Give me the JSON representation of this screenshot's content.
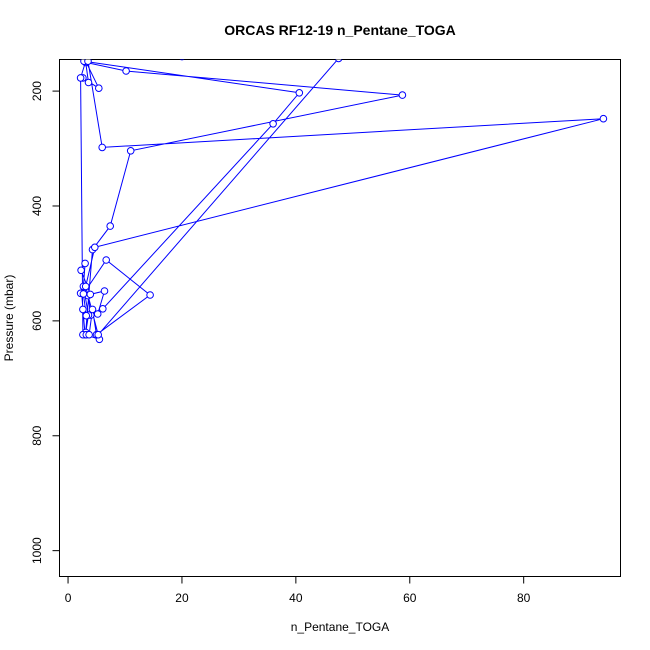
{
  "colors": {
    "series": "#0000ff",
    "axis": "#000000",
    "background": "#ffffff"
  },
  "chart_data": {
    "type": "line",
    "title": "ORCAS RF12-19 n_Pentane_TOGA",
    "xlabel": "n_Pentane_TOGA",
    "ylabel": "Pressure (mbar)",
    "xlim": [
      -1.5,
      97
    ],
    "ylim": [
      1045,
      145
    ],
    "y_reversed": true,
    "x_ticks": [
      0,
      20,
      40,
      60,
      80
    ],
    "y_ticks": [
      200,
      400,
      600,
      800,
      1000
    ],
    "grid": false,
    "markers": "open-circle",
    "series": [
      {
        "name": "",
        "x": [
          5.5,
          3.0,
          2.6,
          2.4,
          2.2,
          3.5,
          4.0,
          5.2,
          6.4,
          3.9,
          2.3,
          3.0,
          2.7,
          3.6,
          3.1,
          4.3,
          7.4,
          11.0,
          58.7,
          10.2,
          3.1,
          3.6,
          2.6,
          5.4,
          3.1,
          2.2,
          2.6,
          3.2,
          3.7,
          4.3,
          5.0,
          14.4,
          6.7,
          2.7,
          3.2,
          6.1,
          36.0,
          40.6,
          2.8,
          3.5,
          6.0,
          94.0,
          4.7,
          3.1,
          5.3,
          47.5,
          20.0
        ],
        "y": [
          632,
          624,
          580,
          552,
          552,
          556,
          590,
          588,
          548,
          554,
          512,
          500,
          540,
          590,
          620,
          476,
          435,
          304,
          207,
          165,
          150,
          185,
          177,
          195,
          148,
          177,
          624,
          624,
          624,
          580,
          624,
          555,
          494,
          553,
          591,
          579,
          257,
          203,
          148,
          148,
          298,
          248,
          472,
          540,
          624,
          143,
          140
        ]
      }
    ]
  }
}
